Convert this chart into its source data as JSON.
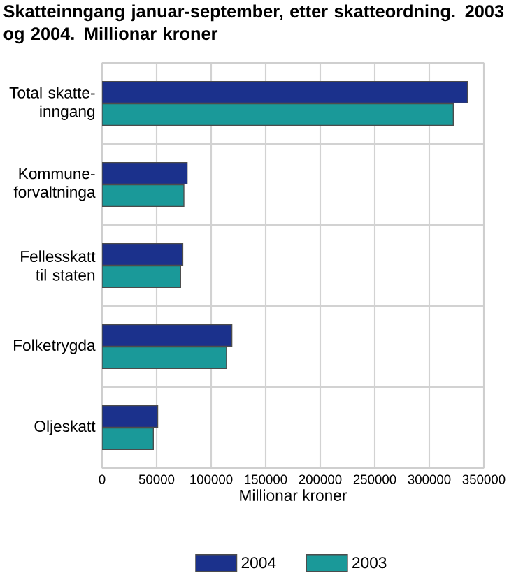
{
  "chart_data": {
    "type": "bar",
    "orientation": "horizontal",
    "title": "Skatteinngang januar-september, etter skatteordning. 2003 og 2004. Millionar kroner",
    "xlabel": "Millionar kroner",
    "categories": [
      "Total skatte-inngang",
      "Kommune-forvaltninga",
      "Fellesskatt til staten",
      "Folketrygda",
      "Oljeskatt"
    ],
    "series": [
      {
        "name": "2004",
        "color": "#1b318c",
        "values": [
          335000,
          78000,
          74000,
          119000,
          51000
        ]
      },
      {
        "name": "2003",
        "color": "#1a9999",
        "values": [
          322000,
          75000,
          72000,
          114000,
          47000
        ]
      }
    ],
    "xlim": [
      0,
      350000
    ],
    "xticks": [
      0,
      50000,
      100000,
      150000,
      200000,
      250000,
      300000,
      350000
    ],
    "grid": true,
    "legend": "bottom"
  }
}
